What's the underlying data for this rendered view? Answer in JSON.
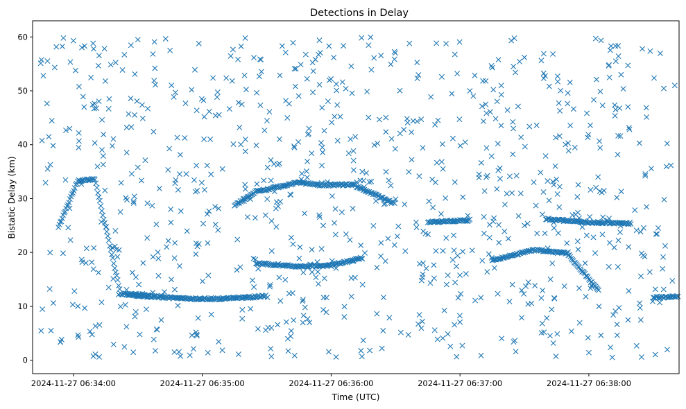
{
  "chart_data": {
    "type": "scatter",
    "title": "Detections in Delay",
    "xlabel": "Time (UTC)",
    "ylabel": "Bistatic Delay (km)",
    "marker": "x",
    "color": "#1f77b4",
    "grid": false,
    "legend": "none",
    "xlim": [
      "2024-11-27 06:33:41",
      "2024-11-27 06:38:42"
    ],
    "ylim": [
      -2.5,
      63
    ],
    "x_ticks": [
      "2024-11-27 06:34:00",
      "2024-11-27 06:35:00",
      "2024-11-27 06:36:00",
      "2024-11-27 06:37:00",
      "2024-11-27 06:38:00"
    ],
    "y_ticks": [
      0,
      10,
      20,
      30,
      40,
      50,
      60
    ],
    "tracks": [
      {
        "x": [
          "2024-11-27 06:34:25",
          "2024-11-27 06:34:32",
          "2024-11-27 06:34:45",
          "2024-11-27 06:34:55",
          "2024-11-27 06:35:10",
          "2024-11-27 06:35:30",
          "2024-11-27 06:35:55",
          "2024-11-27 06:36:20",
          "2024-11-27 06:36:50",
          "2024-11-27 06:37:15",
          "2024-11-27 06:37:35",
          "2024-11-27 06:37:50",
          "2024-11-27 06:38:05",
          "2024-11-27 06:38:30",
          "2024-11-27 06:38:42"
        ],
        "y": [
          12.2,
          11.9,
          11.6,
          11.4,
          11.4,
          11.9,
          13.0,
          14.5,
          16.5,
          18.5,
          20.5,
          19.8,
          12.7,
          11.6,
          11.8
        ]
      },
      {
        "x": [
          "2024-11-27 06:33:53",
          "2024-11-27 06:34:02",
          "2024-11-27 06:34:10",
          "2024-11-27 06:34:22",
          "2024-11-27 06:34:30",
          "2024-11-27 06:34:36"
        ],
        "y": [
          24.6,
          33.3,
          33.6,
          12.3,
          12.2,
          12.0
        ]
      },
      {
        "x": [
          "2024-11-27 06:34:19",
          "2024-11-27 06:34:40",
          "2024-11-27 06:35:25",
          "2024-11-27 06:35:45",
          "2024-11-27 06:36:00",
          "2024-11-27 06:36:15",
          "2024-11-27 06:36:45",
          "2024-11-27 06:37:05",
          "2024-11-27 06:37:40",
          "2024-11-27 06:38:00",
          "2024-11-27 06:38:20"
        ],
        "y": [
          29.6,
          30.0,
          18.0,
          17.4,
          17.6,
          19.0,
          25.6,
          26.0,
          26.2,
          25.6,
          25.4
        ]
      },
      {
        "x": [
          "2024-11-27 06:35:15",
          "2024-11-27 06:35:25",
          "2024-11-27 06:35:45",
          "2024-11-27 06:35:55",
          "2024-11-27 06:36:10",
          "2024-11-27 06:36:30"
        ],
        "y": [
          28.7,
          31.3,
          33.0,
          32.5,
          32.6,
          29.0
        ]
      }
    ],
    "scatter_seed": 1127,
    "scatter_count": 880,
    "x": [
      "2024-11-27 06:33:46",
      "2024-11-27 06:33:48",
      "2024-11-27 06:34:00",
      "2024-11-27 06:34:05",
      "2024-11-27 06:34:12",
      "2024-11-27 06:34:30",
      "2024-11-27 06:34:45",
      "2024-11-27 06:35:20",
      "2024-11-27 06:35:40",
      "2024-11-27 06:36:18",
      "2024-11-27 06:37:30",
      "2024-11-27 06:38:00",
      "2024-11-27 06:38:40"
    ],
    "y": [
      52.8,
      35.5,
      59.3,
      47.0,
      0.6,
      59.5,
      57.5,
      59.8,
      1.7,
      1.8,
      56.2,
      1.4,
      51.0
    ]
  }
}
